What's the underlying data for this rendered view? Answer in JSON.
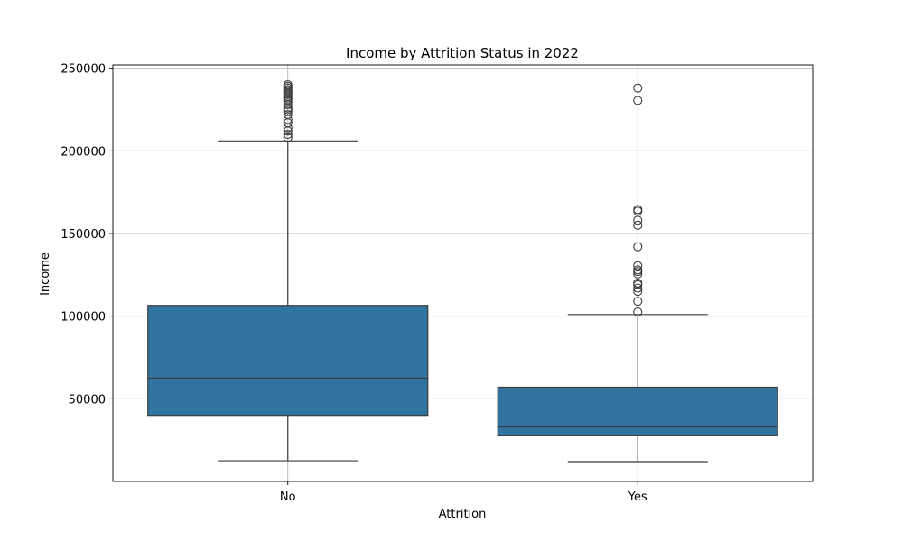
{
  "chart_data": {
    "type": "box",
    "title": "Income by Attrition Status in 2022",
    "xlabel": "Attrition",
    "ylabel": "Income",
    "ylim": [
      0,
      252000
    ],
    "yticks": [
      50000,
      100000,
      150000,
      200000,
      250000
    ],
    "grid": true,
    "box_color": "#3274a1",
    "line_color": "#3b3b3b",
    "grid_color": "#b0b0b0",
    "series": [
      {
        "category": "No",
        "whisker_low": 12500,
        "q1": 40000,
        "median": 62500,
        "q3": 106500,
        "whisker_high": 206000,
        "outliers": [
          208000,
          210000,
          212000,
          214000,
          217000,
          219000,
          222000,
          224000,
          225000,
          226000,
          228000,
          230000,
          231000,
          232000,
          233000,
          234000,
          235000,
          236000,
          237000,
          238000,
          239000,
          240000
        ]
      },
      {
        "category": "Yes",
        "whisker_low": 12000,
        "q1": 28000,
        "median": 33000,
        "q3": 57000,
        "whisker_high": 101000,
        "outliers": [
          102500,
          109000,
          115000,
          117000,
          119000,
          120000,
          125500,
          127000,
          128000,
          130500,
          142000,
          155000,
          158000,
          163500,
          164500,
          230500,
          238000
        ]
      }
    ]
  }
}
